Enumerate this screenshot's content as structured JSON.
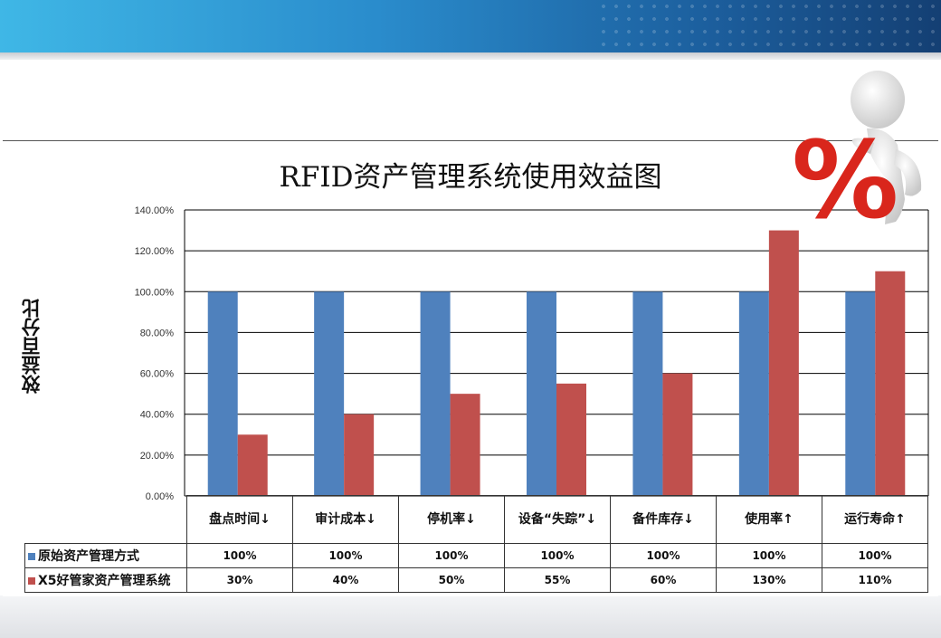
{
  "title": "RFID资产管理系统使用效益图",
  "ylabel": "效益百分比",
  "colors": {
    "series1": "#4f81bd",
    "series2": "#c0504d",
    "percent_sign": "#d9261c"
  },
  "mascot": {
    "icon": "percent-mascot-icon",
    "text": "%"
  },
  "chart_data": {
    "type": "bar",
    "title": "RFID资产管理系统使用效益图",
    "ylabel": "效益百分比",
    "xlabel": "",
    "categories": [
      "盘点时间↓",
      "审计成本↓",
      "停机率↓",
      "设备“失踪”↓",
      "备件库存↓",
      "使用率↑",
      "运行寿命↑"
    ],
    "series": [
      {
        "name": "原始资产管理方式",
        "values": [
          100,
          100,
          100,
          100,
          100,
          100,
          100
        ],
        "labels": [
          "100%",
          "100%",
          "100%",
          "100%",
          "100%",
          "100%",
          "100%"
        ]
      },
      {
        "name": "X5好管家资产管理系统",
        "values": [
          30,
          40,
          50,
          55,
          60,
          130,
          110
        ],
        "labels": [
          "30%",
          "40%",
          "50%",
          "55%",
          "60%",
          "130%",
          "110%"
        ]
      }
    ],
    "ylim": [
      0,
      140
    ],
    "yticks": [
      "0.00%",
      "20.00%",
      "40.00%",
      "60.00%",
      "80.00%",
      "100.00%",
      "120.00%",
      "140.00%"
    ],
    "grid": true,
    "legend": "data-table"
  }
}
